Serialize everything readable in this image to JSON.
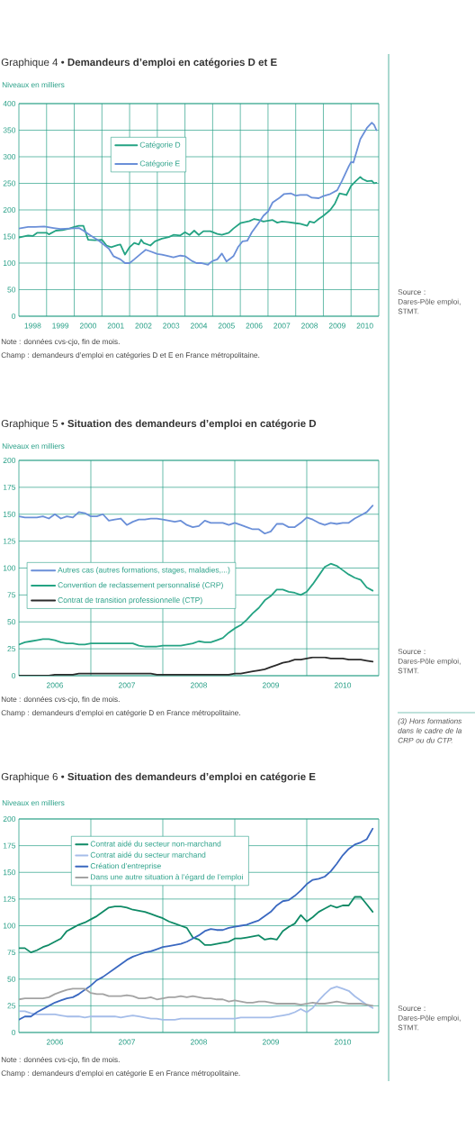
{
  "chart_data": [
    {
      "type": "line",
      "title": "Graphique 4 • **Demandeurs d’emploi en catégories D et E**",
      "ylabel": "Niveaux en milliers",
      "xlim": [
        "1998-01",
        "2011-01"
      ],
      "ylim": [
        0,
        400
      ],
      "xticks": [
        {
          "value": "1998-07",
          "label": "1998"
        },
        {
          "value": "1999-01",
          "label": null
        },
        {
          "value": "1999-07",
          "label": "1999"
        },
        {
          "value": "2000-01",
          "label": null
        },
        {
          "value": "2000-07",
          "label": "2000"
        },
        {
          "value": "2001-01",
          "label": null
        },
        {
          "value": "2001-07",
          "label": "2001"
        },
        {
          "value": "2002-01",
          "label": null
        },
        {
          "value": "2002-07",
          "label": "2002"
        },
        {
          "value": "2003-01",
          "label": null
        },
        {
          "value": "2003-07",
          "label": "2003"
        },
        {
          "value": "2004-01",
          "label": null
        },
        {
          "value": "2004-07",
          "label": "2004"
        },
        {
          "value": "2005-01",
          "label": null
        },
        {
          "value": "2005-07",
          "label": "2005"
        },
        {
          "value": "2006-01",
          "label": null
        },
        {
          "value": "2006-07",
          "label": "2006"
        },
        {
          "value": "2007-01",
          "label": null
        },
        {
          "value": "2007-07",
          "label": "2007"
        },
        {
          "value": "2008-01",
          "label": null
        },
        {
          "value": "2008-07",
          "label": "2008"
        },
        {
          "value": "2009-01",
          "label": null
        },
        {
          "value": "2009-07",
          "label": "2009"
        },
        {
          "value": "2010-01",
          "label": null
        },
        {
          "value": "2010-07",
          "label": "2010"
        }
      ],
      "yticks": [
        0,
        50,
        100,
        150,
        200,
        250,
        300,
        350,
        400
      ],
      "grid": true,
      "legend": "top",
      "series": [
        {
          "name": "Catégorie D",
          "color": "#24a383",
          "x": [
            "1998-01",
            "1998-05",
            "1998-07",
            "1998-09",
            "1999-01",
            "1999-02",
            "1999-05",
            "1999-08",
            "1999-11",
            "2000-01",
            "2000-03",
            "2000-05",
            "2000-07",
            "2000-10",
            "2001-01",
            "2001-03",
            "2001-05",
            "2001-08",
            "2001-09",
            "2001-11",
            "2002-01",
            "2002-03",
            "2002-05",
            "2002-06",
            "2002-07",
            "2002-10",
            "2002-12",
            "2003-03",
            "2003-06",
            "2003-08",
            "2003-11",
            "2004-01",
            "2004-03",
            "2004-05",
            "2004-07",
            "2004-09",
            "2004-12",
            "2005-03",
            "2005-05",
            "2005-08",
            "2005-10",
            "2006-01",
            "2006-05",
            "2006-07",
            "2006-09",
            "2006-11",
            "2007-03",
            "2007-05",
            "2007-07",
            "2007-10",
            "2008-01",
            "2008-03",
            "2008-06",
            "2008-07",
            "2008-09",
            "2008-11",
            "2009-01",
            "2009-04",
            "2009-06",
            "2009-08",
            "2009-11",
            "2010-01",
            "2010-03",
            "2010-05",
            "2010-06",
            "2010-08",
            "2010-10",
            "2010-11",
            "2010-12"
          ],
          "values": [
            148,
            152,
            151,
            157,
            157,
            154,
            161,
            162,
            165,
            168,
            170,
            170,
            144,
            143,
            144,
            133,
            130,
            134,
            135,
            116,
            130,
            138,
            135,
            144,
            138,
            133,
            141,
            146,
            149,
            153,
            152,
            158,
            153,
            161,
            153,
            160,
            160,
            155,
            153,
            157,
            165,
            175,
            179,
            183,
            181,
            178,
            181,
            176,
            178,
            177,
            175,
            174,
            170,
            178,
            176,
            183,
            189,
            200,
            212,
            231,
            228,
            245,
            254,
            262,
            258,
            254,
            255,
            250,
            251
          ]
        },
        {
          "name": "Catégorie E",
          "color": "#6a8fd8",
          "x": [
            "1998-01",
            "1998-05",
            "1998-08",
            "1998-12",
            "1999-04",
            "1999-07",
            "1999-11",
            "2000-03",
            "2000-05",
            "2000-08",
            "2000-12",
            "2001-04",
            "2001-06",
            "2001-09",
            "2001-11",
            "2002-01",
            "2002-03",
            "2002-06",
            "2002-08",
            "2002-10",
            "2003-01",
            "2003-03",
            "2003-06",
            "2003-08",
            "2003-11",
            "2004-01",
            "2004-04",
            "2004-06",
            "2004-08",
            "2004-11",
            "2004-12",
            "2005-01",
            "2005-03",
            "2005-05",
            "2005-07",
            "2005-10",
            "2005-12",
            "2006-02",
            "2006-04",
            "2006-06",
            "2006-09",
            "2006-11",
            "2007-01",
            "2007-03",
            "2007-06",
            "2007-08",
            "2007-11",
            "2008-01",
            "2008-03",
            "2008-06",
            "2008-08",
            "2008-11",
            "2009-01",
            "2009-04",
            "2009-07",
            "2009-09",
            "2009-12",
            "2010-01",
            "2010-02",
            "2010-05",
            "2010-08",
            "2010-10",
            "2010-11",
            "2010-12"
          ],
          "values": [
            165,
            168,
            168,
            169,
            166,
            164,
            165,
            166,
            161,
            152,
            141,
            127,
            113,
            107,
            100,
            100,
            107,
            118,
            125,
            122,
            117,
            116,
            113,
            111,
            114,
            113,
            104,
            100,
            100,
            97,
            101,
            104,
            107,
            118,
            103,
            113,
            130,
            141,
            142,
            158,
            176,
            189,
            197,
            214,
            223,
            230,
            231,
            227,
            228,
            228,
            223,
            222,
            226,
            230,
            237,
            254,
            282,
            290,
            289,
            333,
            355,
            364,
            360,
            350
          ]
        }
      ],
      "annotations": [
        "Note : données cvs-cjo, fin de mois.",
        "Champ : demandeurs d’emploi en catégories D et E en France métropolitaine.",
        "Source : Dares-Pôle emploi, STMT."
      ]
    },
    {
      "type": "line",
      "title": "Graphique 5 • **Situation des demandeurs d’emploi en catégorie D**",
      "ylabel": "Niveaux en milliers",
      "xlim": [
        "2006-01",
        "2011-01"
      ],
      "ylim": [
        0,
        200
      ],
      "xticks": [
        {
          "value": "2006-07",
          "label": "2006"
        },
        {
          "value": "2007-01",
          "label": null
        },
        {
          "value": "2007-07",
          "label": "2007"
        },
        {
          "value": "2008-01",
          "label": null
        },
        {
          "value": "2008-07",
          "label": "2008"
        },
        {
          "value": "2009-01",
          "label": null
        },
        {
          "value": "2009-07",
          "label": "2009"
        },
        {
          "value": "2010-01",
          "label": null
        },
        {
          "value": "2010-07",
          "label": "2010"
        }
      ],
      "yticks": [
        0,
        25,
        50,
        75,
        100,
        125,
        150,
        175,
        200
      ],
      "grid": true,
      "legend": "left",
      "x": [
        "2006-01",
        "2006-02",
        "2006-03",
        "2006-04",
        "2006-05",
        "2006-06",
        "2006-07",
        "2006-08",
        "2006-09",
        "2006-10",
        "2006-11",
        "2006-12",
        "2007-01",
        "2007-02",
        "2007-03",
        "2007-04",
        "2007-05",
        "2007-06",
        "2007-07",
        "2007-08",
        "2007-09",
        "2007-10",
        "2007-11",
        "2007-12",
        "2008-01",
        "2008-02",
        "2008-03",
        "2008-04",
        "2008-05",
        "2008-06",
        "2008-07",
        "2008-08",
        "2008-09",
        "2008-10",
        "2008-11",
        "2008-12",
        "2009-01",
        "2009-02",
        "2009-03",
        "2009-04",
        "2009-05",
        "2009-06",
        "2009-07",
        "2009-08",
        "2009-09",
        "2009-10",
        "2009-11",
        "2009-12",
        "2010-01",
        "2010-02",
        "2010-03",
        "2010-04",
        "2010-05",
        "2010-06",
        "2010-07",
        "2010-08",
        "2010-09",
        "2010-10",
        "2010-11",
        "2010-12"
      ],
      "series": [
        {
          "name": "Autres cas (autres formations, stages, maladies,...)",
          "color": "#6a8fd8",
          "values": [
            148,
            147,
            147,
            147,
            148,
            146,
            150,
            146,
            148,
            147,
            152,
            151,
            148,
            148,
            150,
            144,
            145,
            146,
            140,
            143,
            145,
            145,
            146,
            146,
            145,
            144,
            143,
            144,
            140,
            138,
            139,
            144,
            142,
            142,
            142,
            140,
            142,
            140,
            138,
            136,
            136,
            132,
            134,
            141,
            141,
            138,
            138,
            142,
            147,
            145,
            142,
            140,
            142,
            141,
            142,
            142,
            146,
            149,
            152,
            158
          ]
        },
        {
          "name": "Convention de reclassement personnalisé (CRP)",
          "color": "#24a383",
          "values": [
            29,
            31,
            32,
            33,
            34,
            34,
            33,
            31,
            30,
            30,
            29,
            29,
            30,
            30,
            30,
            30,
            30,
            30,
            30,
            30,
            28,
            27,
            27,
            27,
            28,
            28,
            28,
            28,
            29,
            30,
            32,
            31,
            31,
            33,
            35,
            40,
            44,
            47,
            52,
            58,
            63,
            70,
            74,
            80,
            80,
            78,
            77,
            75,
            78,
            85,
            93,
            101,
            104,
            102,
            98,
            94,
            91,
            89,
            82,
            79
          ]
        },
        {
          "name": "Contrat de transition professionnelle (CTP)",
          "color": "#2b2b2b",
          "values": [
            0,
            0,
            0,
            0,
            0,
            0,
            1,
            1,
            1,
            1,
            2,
            2,
            2,
            2,
            2,
            2,
            2,
            2,
            2,
            2,
            2,
            2,
            2,
            1,
            1,
            1,
            1,
            1,
            1,
            1,
            1,
            1,
            1,
            1,
            1,
            1,
            2,
            2,
            3,
            4,
            5,
            6,
            8,
            10,
            12,
            13,
            15,
            15,
            16,
            17,
            17,
            17,
            16,
            16,
            16,
            15,
            15,
            15,
            14,
            13
          ]
        }
      ],
      "annotations": [
        "Note : données cvs-cjo, fin de mois.",
        "Champ : demandeurs d’emploi en catégorie D en France métropolitaine.",
        "Source : Dares-Pôle emploi, STMT.",
        "(3) Hors formations dans le cadre de la CRP ou du CTP."
      ]
    },
    {
      "type": "line",
      "title": "Graphique 6 • **Situation des demandeurs d’emploi en catégorie E**",
      "ylabel": "Niveaux en milliers",
      "xlim": [
        "2006-01",
        "2011-01"
      ],
      "ylim": [
        0,
        200
      ],
      "xticks": [
        {
          "value": "2006-07",
          "label": "2006"
        },
        {
          "value": "2007-01",
          "label": null
        },
        {
          "value": "2007-07",
          "label": "2007"
        },
        {
          "value": "2008-01",
          "label": null
        },
        {
          "value": "2008-07",
          "label": "2008"
        },
        {
          "value": "2009-01",
          "label": null
        },
        {
          "value": "2009-07",
          "label": "2009"
        },
        {
          "value": "2010-01",
          "label": null
        },
        {
          "value": "2010-07",
          "label": "2010"
        }
      ],
      "yticks": [
        0,
        25,
        50,
        75,
        100,
        125,
        150,
        175,
        200
      ],
      "grid": true,
      "legend": "top left",
      "x": [
        "2006-01",
        "2006-02",
        "2006-03",
        "2006-04",
        "2006-05",
        "2006-06",
        "2006-07",
        "2006-08",
        "2006-09",
        "2006-10",
        "2006-11",
        "2006-12",
        "2007-01",
        "2007-02",
        "2007-03",
        "2007-04",
        "2007-05",
        "2007-06",
        "2007-07",
        "2007-08",
        "2007-09",
        "2007-10",
        "2007-11",
        "2007-12",
        "2008-01",
        "2008-02",
        "2008-03",
        "2008-04",
        "2008-05",
        "2008-06",
        "2008-07",
        "2008-08",
        "2008-09",
        "2008-10",
        "2008-11",
        "2008-12",
        "2009-01",
        "2009-02",
        "2009-03",
        "2009-04",
        "2009-05",
        "2009-06",
        "2009-07",
        "2009-08",
        "2009-09",
        "2009-10",
        "2009-11",
        "2009-12",
        "2010-01",
        "2010-02",
        "2010-03",
        "2010-04",
        "2010-05",
        "2010-06",
        "2010-07",
        "2010-08",
        "2010-09",
        "2010-10",
        "2010-11",
        "2010-12"
      ],
      "series": [
        {
          "name": "Contrat aidé du secteur non-marchand",
          "color": "#0f8a66",
          "values": [
            79,
            79,
            75,
            77,
            80,
            82,
            85,
            88,
            95,
            98,
            101,
            103,
            106,
            109,
            113,
            117,
            118,
            118,
            117,
            115,
            114,
            113,
            111,
            109,
            107,
            104,
            102,
            100,
            98,
            89,
            87,
            82,
            82,
            83,
            84,
            85,
            88,
            88,
            89,
            90,
            91,
            87,
            88,
            87,
            95,
            99,
            102,
            110,
            104,
            108,
            113,
            116,
            119,
            117,
            119,
            119,
            127,
            127,
            120,
            113
          ]
        },
        {
          "name": "Contrat aidé du secteur marchand",
          "color": "#a5bde9",
          "values": [
            20,
            20,
            18,
            17,
            17,
            17,
            17,
            16,
            15,
            15,
            15,
            14,
            15,
            15,
            15,
            15,
            15,
            14,
            15,
            16,
            15,
            14,
            13,
            13,
            12,
            12,
            12,
            13,
            13,
            13,
            13,
            13,
            13,
            13,
            13,
            13,
            13,
            14,
            14,
            14,
            14,
            14,
            14,
            15,
            16,
            17,
            19,
            22,
            19,
            23,
            30,
            36,
            41,
            43,
            41,
            39,
            34,
            30,
            26,
            23
          ]
        },
        {
          "name": "Création d’entreprise",
          "color": "#3a68c0",
          "values": [
            12,
            15,
            15,
            19,
            22,
            25,
            28,
            30,
            32,
            33,
            36,
            40,
            44,
            49,
            52,
            56,
            60,
            64,
            68,
            71,
            73,
            75,
            76,
            78,
            80,
            81,
            82,
            83,
            85,
            88,
            91,
            95,
            97,
            96,
            96,
            98,
            99,
            100,
            101,
            103,
            105,
            109,
            113,
            119,
            123,
            124,
            128,
            133,
            139,
            143,
            144,
            146,
            151,
            158,
            166,
            172,
            176,
            178,
            181,
            191
          ]
        },
        {
          "name": "Dans une autre situation à l’égard de l’emploi",
          "color": "#a3a3a3",
          "values": [
            31,
            32,
            32,
            32,
            32,
            33,
            36,
            38,
            40,
            41,
            41,
            41,
            37,
            36,
            36,
            34,
            34,
            34,
            35,
            34,
            32,
            32,
            33,
            31,
            32,
            33,
            33,
            34,
            33,
            34,
            33,
            32,
            32,
            31,
            31,
            29,
            30,
            29,
            28,
            28,
            29,
            29,
            28,
            27,
            27,
            27,
            27,
            26,
            27,
            28,
            27,
            27,
            28,
            29,
            28,
            27,
            27,
            27,
            26,
            25
          ]
        }
      ],
      "annotations": [
        "Note : données cvs-cjo, fin de mois.",
        "Champ : demandeurs d’emploi en catégorie E en France métropolitaine.",
        "Source : Dares-Pôle emploi, STMT."
      ]
    }
  ]
}
